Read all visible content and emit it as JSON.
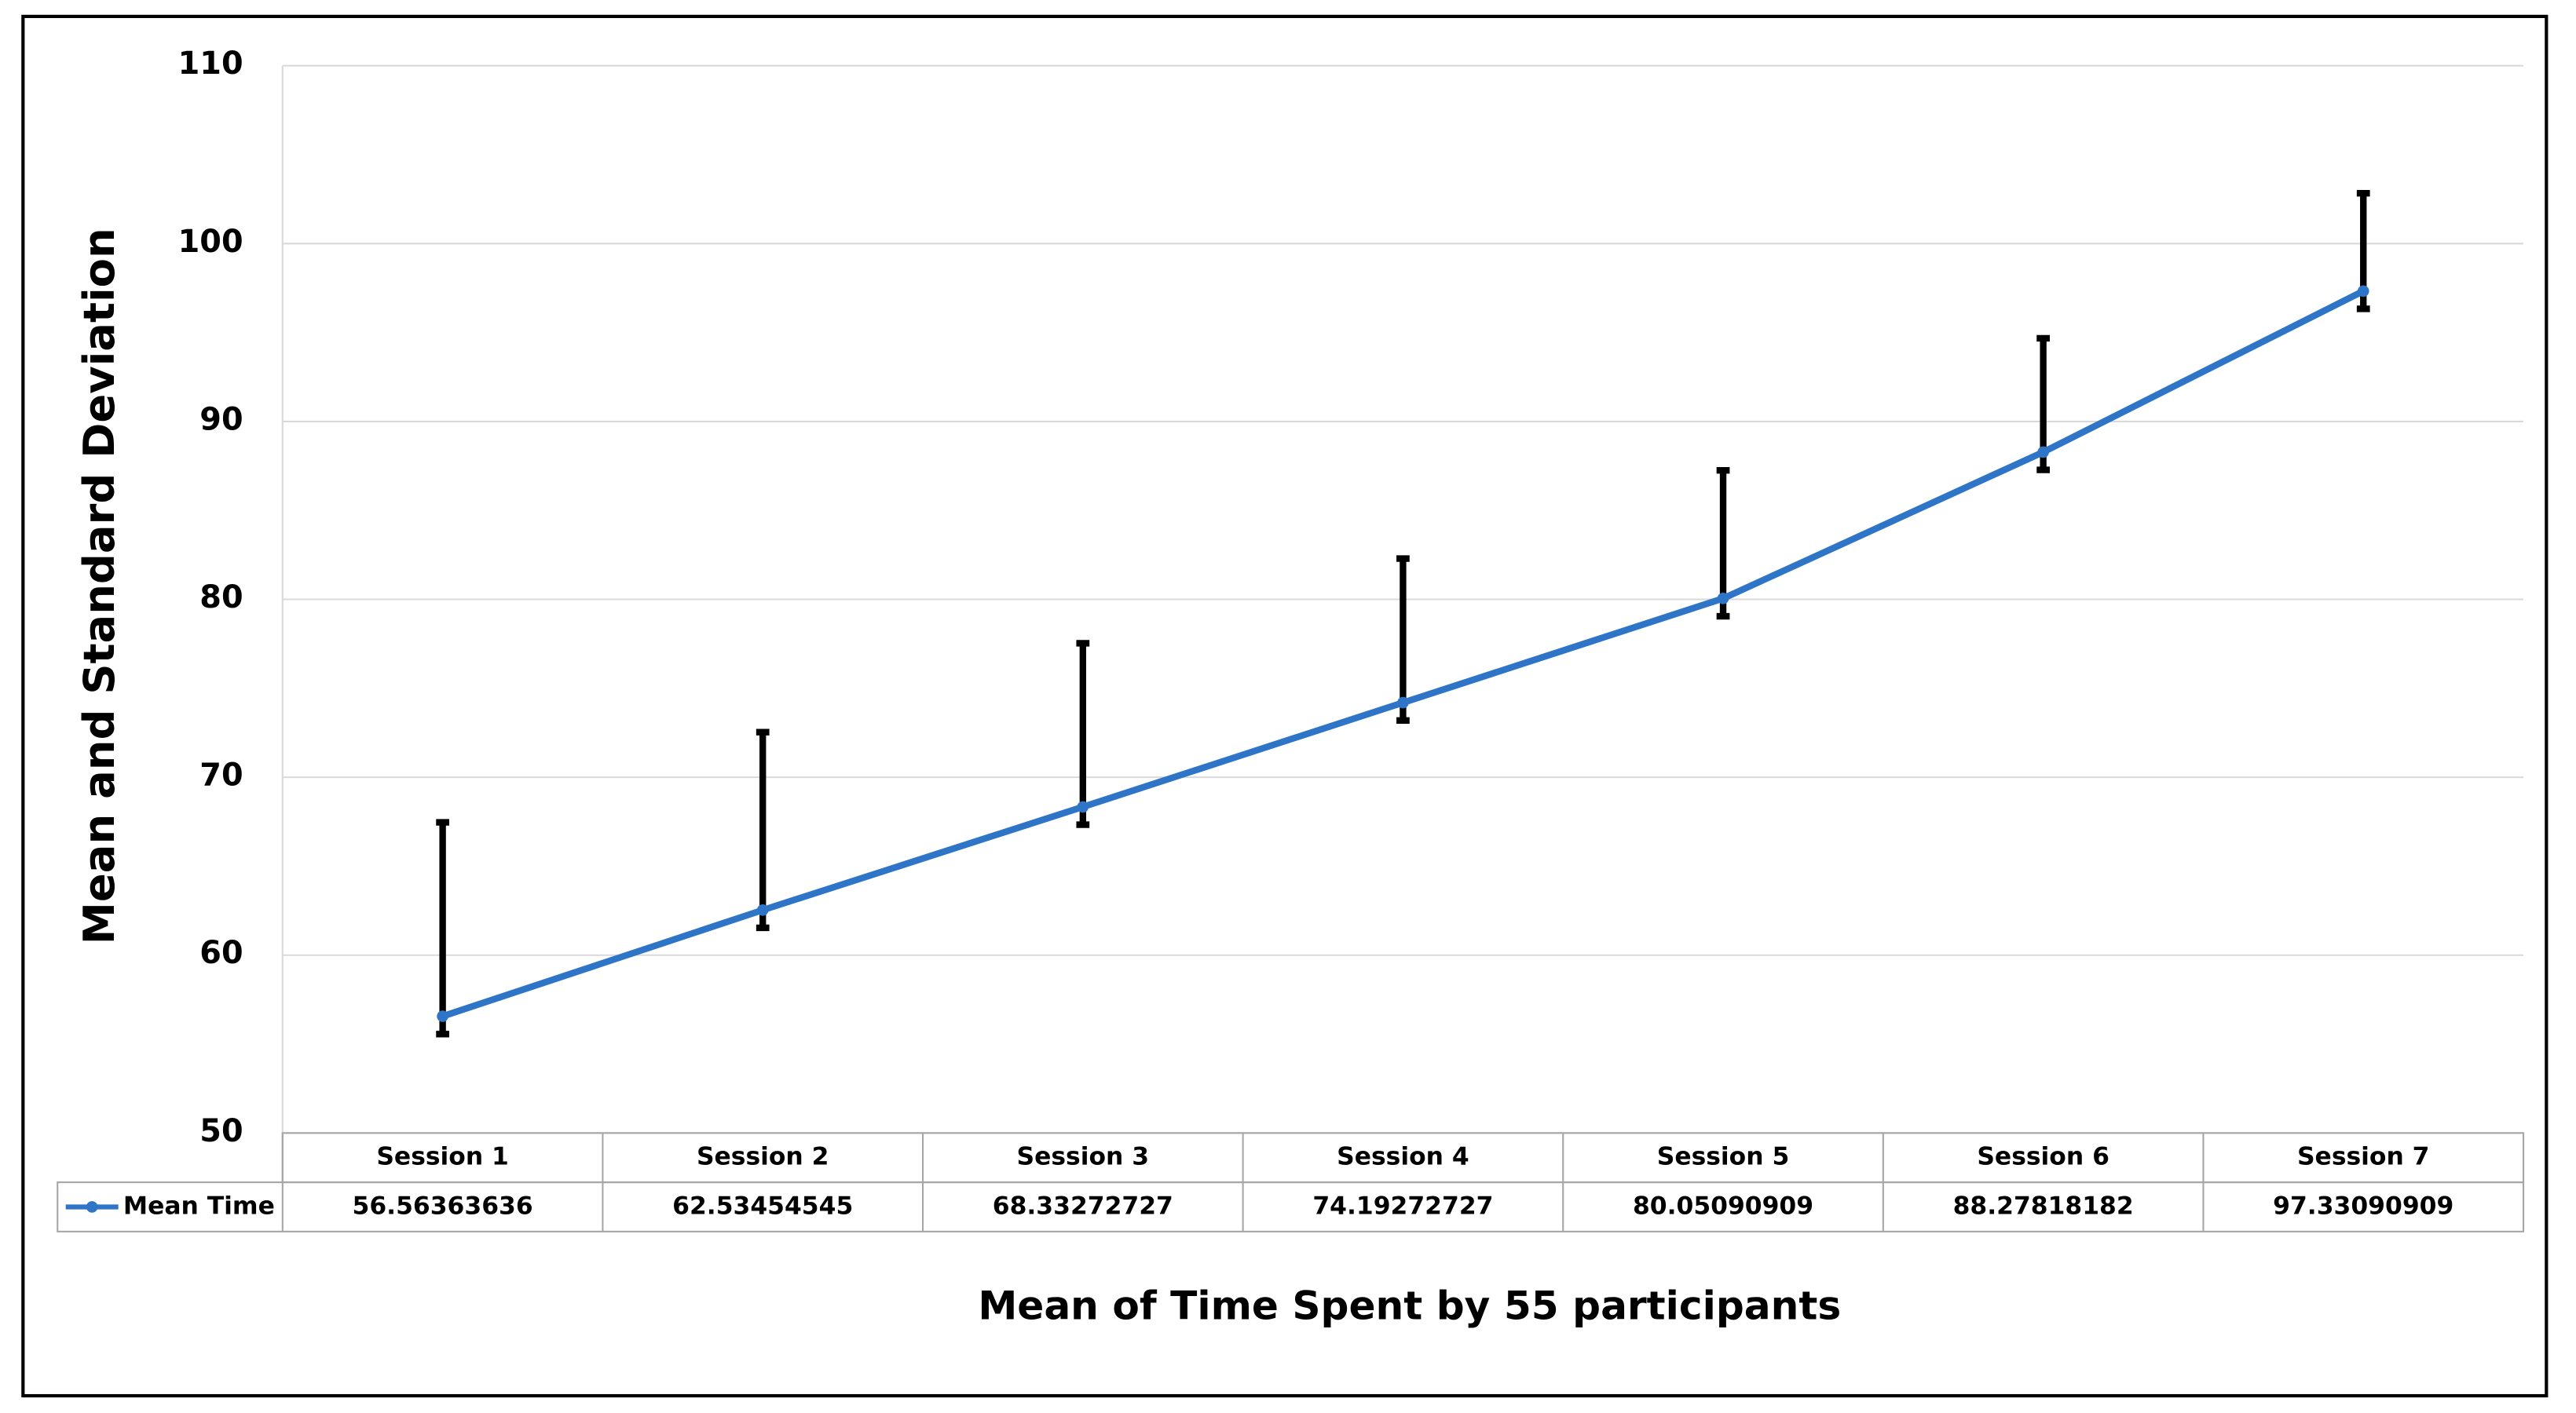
{
  "chart_data": {
    "type": "line",
    "title": "Mean of Time Spent by 55 participants",
    "y_label": "Mean and Standard Deviation",
    "categories": [
      "Session 1",
      "Session 2",
      "Session 3",
      "Session 4",
      "Session 5",
      "Session 6",
      "Session 7"
    ],
    "series": [
      {
        "name": "Mean Time",
        "color": "#2e75c8",
        "values": [
          56.56363636,
          62.53454545,
          68.33272727,
          74.19272727,
          80.05090909,
          88.27818182,
          97.33090909
        ],
        "error_plus": [
          10.9,
          10.0,
          9.2,
          8.1,
          7.2,
          6.4,
          5.5
        ],
        "error_minus": [
          1,
          1,
          1,
          1,
          1,
          1,
          1
        ],
        "error_color": "#000000"
      }
    ],
    "ylim": [
      50,
      110
    ],
    "yticks": [
      50,
      60,
      70,
      80,
      90,
      100,
      110
    ],
    "grid": true,
    "data_table": true
  }
}
